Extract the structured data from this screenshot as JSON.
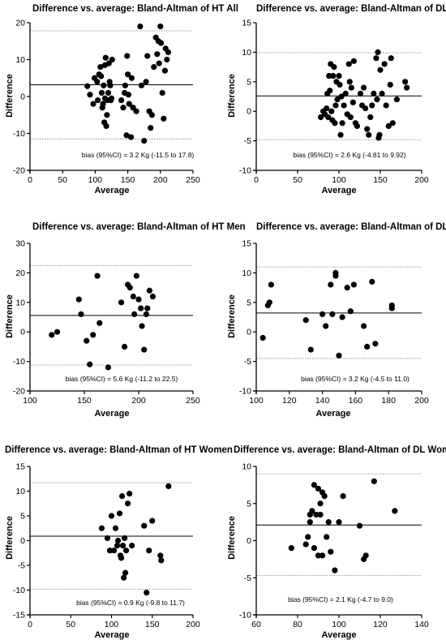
{
  "chart_data": [
    {
      "type": "scatter",
      "title": "Difference vs. average: Bland-Altman of HT All",
      "xlabel": "Average",
      "ylabel": "Difference",
      "xlim": [
        0,
        250
      ],
      "ylim": [
        -20,
        20
      ],
      "xticks": [
        0,
        50,
        100,
        150,
        200,
        250
      ],
      "yticks": [
        -20,
        -10,
        0,
        10,
        20
      ],
      "bias": 3.2,
      "loa": [
        -11.5,
        17.8
      ],
      "annotation": "bias (95%CI) = 3.2 Kg (-11.5 to 17.8)",
      "points": [
        [
          88,
          2.8
        ],
        [
          92,
          0.5
        ],
        [
          97,
          -2
        ],
        [
          99,
          5
        ],
        [
          103,
          4
        ],
        [
          104,
          -1
        ],
        [
          106,
          6
        ],
        [
          108,
          8
        ],
        [
          109,
          5.5
        ],
        [
          110,
          1
        ],
        [
          111,
          -3
        ],
        [
          112,
          -2
        ],
        [
          113,
          3
        ],
        [
          114,
          -7
        ],
        [
          115,
          -0.5
        ],
        [
          115,
          8.5
        ],
        [
          116,
          10.5
        ],
        [
          117,
          -8
        ],
        [
          118,
          -5
        ],
        [
          119,
          -1
        ],
        [
          120,
          1
        ],
        [
          121,
          9
        ],
        [
          122,
          4
        ],
        [
          123,
          3
        ],
        [
          124,
          -1
        ],
        [
          125,
          -0.5
        ],
        [
          126,
          10
        ],
        [
          140,
          -1
        ],
        [
          143,
          -3
        ],
        [
          145,
          1
        ],
        [
          146,
          3
        ],
        [
          148,
          -10.5
        ],
        [
          149,
          11
        ],
        [
          150,
          6
        ],
        [
          151,
          0.5
        ],
        [
          152,
          -2
        ],
        [
          155,
          -11
        ],
        [
          156,
          5
        ],
        [
          158,
          -3
        ],
        [
          163,
          -4
        ],
        [
          169,
          19
        ],
        [
          171,
          3
        ],
        [
          175,
          -12
        ],
        [
          178,
          4
        ],
        [
          180,
          11
        ],
        [
          183,
          -4
        ],
        [
          185,
          -8.5
        ],
        [
          187,
          -5
        ],
        [
          190,
          8
        ],
        [
          193,
          16
        ],
        [
          195,
          11.5
        ],
        [
          197,
          15
        ],
        [
          198,
          9
        ],
        [
          200,
          19
        ],
        [
          201,
          14.5
        ],
        [
          203,
          1
        ],
        [
          205,
          -6
        ],
        [
          207,
          7
        ],
        [
          208,
          13
        ],
        [
          210,
          10
        ],
        [
          212,
          12
        ]
      ]
    },
    {
      "type": "scatter",
      "title": "Difference vs. average: Bland-Altman of DL All",
      "xlabel": "Average",
      "ylabel": "Difference",
      "xlim": [
        0,
        200
      ],
      "ylim": [
        -10,
        15
      ],
      "xticks": [
        0,
        50,
        100,
        150,
        200
      ],
      "yticks": [
        -10,
        -5,
        0,
        5,
        10,
        15
      ],
      "bias": 2.6,
      "loa": [
        -4.81,
        9.92
      ],
      "annotation": "bias (95%CI) = 2.6 Kg (-4.81 to 9.92)",
      "points": [
        [
          78,
          -1
        ],
        [
          81,
          0
        ],
        [
          83,
          -0.5
        ],
        [
          85,
          0.5
        ],
        [
          86,
          3
        ],
        [
          87,
          -1
        ],
        [
          88,
          6
        ],
        [
          89,
          3.5
        ],
        [
          90,
          8
        ],
        [
          91,
          0
        ],
        [
          92,
          -1.5
        ],
        [
          93,
          6
        ],
        [
          94,
          7.5
        ],
        [
          95,
          -2
        ],
        [
          96,
          1
        ],
        [
          97,
          5
        ],
        [
          98,
          2
        ],
        [
          100,
          6
        ],
        [
          101,
          4.5
        ],
        [
          102,
          -4
        ],
        [
          103,
          2.5
        ],
        [
          104,
          -2
        ],
        [
          106,
          1
        ],
        [
          108,
          3
        ],
        [
          110,
          -0.5
        ],
        [
          112,
          8
        ],
        [
          113,
          5
        ],
        [
          114,
          -1
        ],
        [
          115,
          4
        ],
        [
          117,
          1.5
        ],
        [
          118,
          8.5
        ],
        [
          120,
          -2
        ],
        [
          122,
          -2.5
        ],
        [
          126,
          3
        ],
        [
          128,
          1
        ],
        [
          130,
          4
        ],
        [
          132,
          0.5
        ],
        [
          134,
          -3
        ],
        [
          136,
          -4
        ],
        [
          138,
          -1
        ],
        [
          140,
          1
        ],
        [
          142,
          3
        ],
        [
          145,
          9
        ],
        [
          146,
          2
        ],
        [
          147,
          10
        ],
        [
          148,
          -4.5
        ],
        [
          149,
          -4
        ],
        [
          150,
          7
        ],
        [
          152,
          3
        ],
        [
          155,
          8
        ],
        [
          157,
          1
        ],
        [
          160,
          -2.5
        ],
        [
          162,
          4.5
        ],
        [
          163,
          9
        ],
        [
          165,
          -2
        ],
        [
          170,
          2
        ],
        [
          180,
          5
        ],
        [
          182,
          4
        ]
      ]
    },
    {
      "type": "scatter",
      "title": "Difference vs. average: Bland-Altman of HT Men",
      "xlabel": "Average",
      "ylabel": "Difference",
      "xlim": [
        100,
        250
      ],
      "ylim": [
        -20,
        30
      ],
      "xticks": [
        100,
        150,
        200,
        250
      ],
      "yticks": [
        -20,
        -10,
        0,
        10,
        20,
        30
      ],
      "bias": 5.6,
      "loa": [
        -11.2,
        22.5
      ],
      "annotation": "bias (95%CI) = 5.6 Kg (-11.2 to 22.5)",
      "points": [
        [
          120,
          -1
        ],
        [
          125,
          0
        ],
        [
          145,
          11
        ],
        [
          147,
          6
        ],
        [
          152,
          -3
        ],
        [
          155,
          -11
        ],
        [
          158,
          -1
        ],
        [
          162,
          19
        ],
        [
          164,
          3
        ],
        [
          172,
          -12
        ],
        [
          184,
          10
        ],
        [
          187,
          -5
        ],
        [
          190,
          16
        ],
        [
          192,
          15
        ],
        [
          195,
          12
        ],
        [
          196,
          6
        ],
        [
          198,
          19
        ],
        [
          200,
          11
        ],
        [
          202,
          8
        ],
        [
          203,
          2
        ],
        [
          205,
          -6
        ],
        [
          207,
          6
        ],
        [
          208,
          8
        ],
        [
          210,
          14
        ],
        [
          213,
          12
        ]
      ]
    },
    {
      "type": "scatter",
      "title": "Difference vs. average: Bland-Altman of DL Men",
      "xlabel": "Average",
      "ylabel": "Difference",
      "xlim": [
        100,
        200
      ],
      "ylim": [
        -10,
        15
      ],
      "xticks": [
        100,
        120,
        140,
        160,
        180,
        200
      ],
      "yticks": [
        -10,
        -5,
        0,
        5,
        10,
        15
      ],
      "bias": 3.2,
      "loa": [
        -4.5,
        11.0
      ],
      "annotation": "bias (95%CI) = 3.2 Kg (-4.5 to 11.0)",
      "points": [
        [
          104,
          -1
        ],
        [
          107,
          4.5
        ],
        [
          108,
          5
        ],
        [
          109,
          8
        ],
        [
          130,
          2
        ],
        [
          133,
          -3
        ],
        [
          140,
          3
        ],
        [
          142,
          1
        ],
        [
          145,
          8
        ],
        [
          146,
          3
        ],
        [
          148,
          9.5
        ],
        [
          148,
          10
        ],
        [
          150,
          -4
        ],
        [
          152,
          2.5
        ],
        [
          155,
          7.5
        ],
        [
          157,
          3.5
        ],
        [
          159,
          8
        ],
        [
          165,
          1
        ],
        [
          167,
          -2.5
        ],
        [
          170,
          8.5
        ],
        [
          172,
          -2
        ],
        [
          182,
          4
        ],
        [
          182,
          4.5
        ]
      ]
    },
    {
      "type": "scatter",
      "title": "Difference vs. average: Bland-Altman of HT Women",
      "xlabel": "Average",
      "ylabel": "Difference",
      "xlim": [
        0,
        200
      ],
      "ylim": [
        -15,
        15
      ],
      "xticks": [
        0,
        50,
        100,
        150,
        200
      ],
      "yticks": [
        -15,
        -10,
        -5,
        0,
        5,
        10,
        15
      ],
      "bias": 0.9,
      "loa": [
        -9.8,
        11.7
      ],
      "annotation": "bias (95%CI) = 0.9 Kg (-9.8 to 11.7)",
      "points": [
        [
          88,
          2.5
        ],
        [
          95,
          0.5
        ],
        [
          98,
          -2
        ],
        [
          100,
          5
        ],
        [
          103,
          -2
        ],
        [
          105,
          2.5
        ],
        [
          107,
          -1
        ],
        [
          108,
          0
        ],
        [
          110,
          5.5
        ],
        [
          111,
          -3
        ],
        [
          112,
          -3.5
        ],
        [
          113,
          9
        ],
        [
          114,
          -1
        ],
        [
          115,
          -7.5
        ],
        [
          116,
          0.5
        ],
        [
          117,
          -6.5
        ],
        [
          118,
          -2
        ],
        [
          120,
          7.5
        ],
        [
          122,
          9.5
        ],
        [
          125,
          -1
        ],
        [
          140,
          3
        ],
        [
          143,
          -10.5
        ],
        [
          146,
          -2
        ],
        [
          150,
          4
        ],
        [
          160,
          -3
        ],
        [
          161,
          -4
        ],
        [
          170,
          11
        ]
      ]
    },
    {
      "type": "scatter",
      "title": "Difference vs. average: Bland-Altman of DL Women",
      "xlabel": "Average",
      "ylabel": "Difference",
      "xlim": [
        60,
        140
      ],
      "ylim": [
        -10,
        10
      ],
      "xticks": [
        60,
        80,
        100,
        120,
        140
      ],
      "yticks": [
        -10,
        -5,
        0,
        5,
        10
      ],
      "bias": 2.1,
      "loa": [
        -4.7,
        9.0
      ],
      "annotation": "bias (95%CI) = 2.1 Kg (-4.7 to 9.0)",
      "points": [
        [
          77,
          -1
        ],
        [
          84,
          -0.5
        ],
        [
          85,
          0.5
        ],
        [
          86,
          2.5
        ],
        [
          86,
          3.5
        ],
        [
          87,
          4
        ],
        [
          88,
          -1
        ],
        [
          88,
          7.5
        ],
        [
          89,
          3.5
        ],
        [
          90,
          -2
        ],
        [
          90,
          7
        ],
        [
          91,
          3.5
        ],
        [
          91,
          5
        ],
        [
          92,
          6.5
        ],
        [
          92,
          -2
        ],
        [
          93,
          6
        ],
        [
          94,
          0.5
        ],
        [
          95,
          2.5
        ],
        [
          96,
          -1.5
        ],
        [
          98,
          -4
        ],
        [
          100,
          2.5
        ],
        [
          102,
          6
        ],
        [
          110,
          2
        ],
        [
          112,
          -2.5
        ],
        [
          113,
          -2
        ],
        [
          117,
          8
        ],
        [
          127,
          4
        ]
      ]
    }
  ]
}
